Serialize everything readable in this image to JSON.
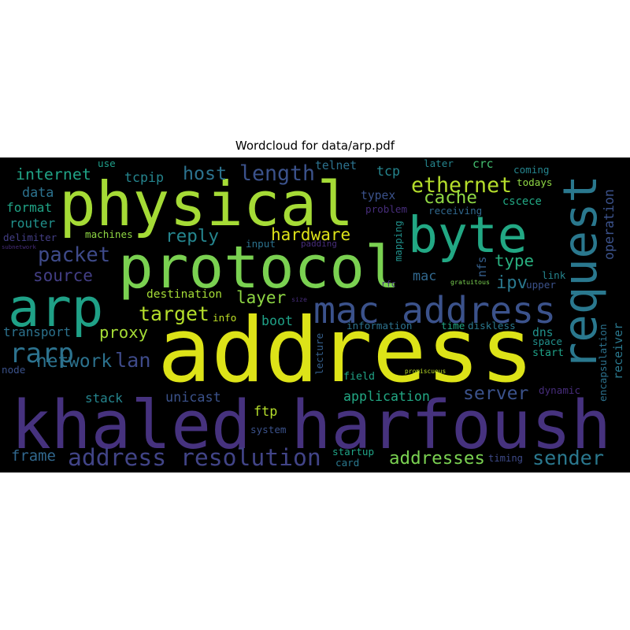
{
  "title": "Wordcloud for data/arp.pdf",
  "words": [
    {
      "text": "address",
      "color": "#dde318"
    },
    {
      "text": "khaled harfoush",
      "color": "#46327e"
    },
    {
      "text": "protocol",
      "color": "#7ad151"
    },
    {
      "text": "physical",
      "color": "#a5db36"
    },
    {
      "text": "byte",
      "color": "#22a884"
    },
    {
      "text": "request",
      "color": "#2a788e"
    },
    {
      "text": "arp",
      "color": "#1fa187"
    },
    {
      "text": "mac address",
      "color": "#3b528b"
    },
    {
      "text": "address resolution",
      "color": "#414487"
    },
    {
      "text": "rarp",
      "color": "#2c728e"
    },
    {
      "text": "length",
      "color": "#3b528b"
    },
    {
      "text": "ethernet",
      "color": "#b5de2b"
    },
    {
      "text": "host",
      "color": "#2c728e"
    },
    {
      "text": "packet",
      "color": "#3e4a89"
    },
    {
      "text": "reply",
      "color": "#25858e"
    },
    {
      "text": "target",
      "color": "#b5de2b"
    },
    {
      "text": "hardware",
      "color": "#dde318"
    },
    {
      "text": "cache",
      "color": "#8fd744"
    },
    {
      "text": "type",
      "color": "#29af7f"
    },
    {
      "text": "sender",
      "color": "#2a788e"
    },
    {
      "text": "addresses",
      "color": "#7ad151"
    },
    {
      "text": "network",
      "color": "#2c728e"
    },
    {
      "text": "source",
      "color": "#433e85"
    },
    {
      "text": "server",
      "color": "#3b528b"
    },
    {
      "text": "layer",
      "color": "#8fd744"
    },
    {
      "text": "lan",
      "color": "#3e4a89"
    },
    {
      "text": "proxy",
      "color": "#a5db36"
    },
    {
      "text": "internet",
      "color": "#20a386"
    },
    {
      "text": "frame",
      "color": "#31688e"
    },
    {
      "text": "ipv",
      "color": "#2a788e"
    },
    {
      "text": "tcpip",
      "color": "#25858e"
    },
    {
      "text": "data",
      "color": "#2c728e"
    },
    {
      "text": "format",
      "color": "#20a386"
    },
    {
      "text": "router",
      "color": "#21918c"
    },
    {
      "text": "transport",
      "color": "#2c728e"
    },
    {
      "text": "destination",
      "color": "#a5db36"
    },
    {
      "text": "boot",
      "color": "#1fa187"
    },
    {
      "text": "stack",
      "color": "#25858e"
    },
    {
      "text": "unicast",
      "color": "#3b528b"
    },
    {
      "text": "application",
      "color": "#22a884"
    },
    {
      "text": "ftp",
      "color": "#b5de2b"
    },
    {
      "text": "startup",
      "color": "#20a386"
    },
    {
      "text": "card",
      "color": "#2a788e"
    },
    {
      "text": "mac",
      "color": "#31688e"
    },
    {
      "text": "nfs",
      "color": "#355f8d"
    },
    {
      "text": "typex",
      "color": "#3b528b"
    },
    {
      "text": "problem",
      "color": "#472d7b"
    },
    {
      "text": "receiving",
      "color": "#31688e"
    },
    {
      "text": "cscece",
      "color": "#22a884"
    },
    {
      "text": "telnet",
      "color": "#2c728e"
    },
    {
      "text": "tcp",
      "color": "#25858e"
    },
    {
      "text": "crc",
      "color": "#44bf70"
    },
    {
      "text": "later",
      "color": "#25858e"
    },
    {
      "text": "coming",
      "color": "#25858e"
    },
    {
      "text": "todays",
      "color": "#8fd744"
    },
    {
      "text": "use",
      "color": "#1f9e89"
    },
    {
      "text": "operation",
      "color": "#3b528b"
    },
    {
      "text": "receiver",
      "color": "#2a788e"
    },
    {
      "text": "encapsulation",
      "color": "#2c728e"
    },
    {
      "text": "dynamic",
      "color": "#472d7b"
    },
    {
      "text": "start",
      "color": "#1fa187"
    },
    {
      "text": "space",
      "color": "#21918c"
    },
    {
      "text": "dns",
      "color": "#21918c"
    },
    {
      "text": "diskless",
      "color": "#2a788e"
    },
    {
      "text": "time",
      "color": "#22a884"
    },
    {
      "text": "information",
      "color": "#2c728e"
    },
    {
      "text": "lecture",
      "color": "#355f8d"
    },
    {
      "text": "field",
      "color": "#20a386"
    },
    {
      "text": "timing",
      "color": "#3e4a89"
    },
    {
      "text": "system",
      "color": "#3b528b"
    },
    {
      "text": "info",
      "color": "#bddf26"
    },
    {
      "text": "input",
      "color": "#2c728e"
    },
    {
      "text": "padding",
      "color": "#472d7b"
    },
    {
      "text": "mapping",
      "color": "#21918c"
    },
    {
      "text": "upper",
      "color": "#3b528b"
    },
    {
      "text": "link",
      "color": "#25858e"
    },
    {
      "text": "machines",
      "color": "#8fd744"
    },
    {
      "text": "delimiter",
      "color": "#433e85"
    },
    {
      "text": "subnetwork",
      "color": "#472d7b"
    },
    {
      "text": "gratuitous",
      "color": "#7ad151"
    },
    {
      "text": "promiscuous",
      "color": "#bddf26"
    },
    {
      "text": "node",
      "color": "#3b528b"
    },
    {
      "text": "size",
      "color": "#472d7b"
    },
    {
      "text": "rfc",
      "color": "#472d7b"
    }
  ]
}
